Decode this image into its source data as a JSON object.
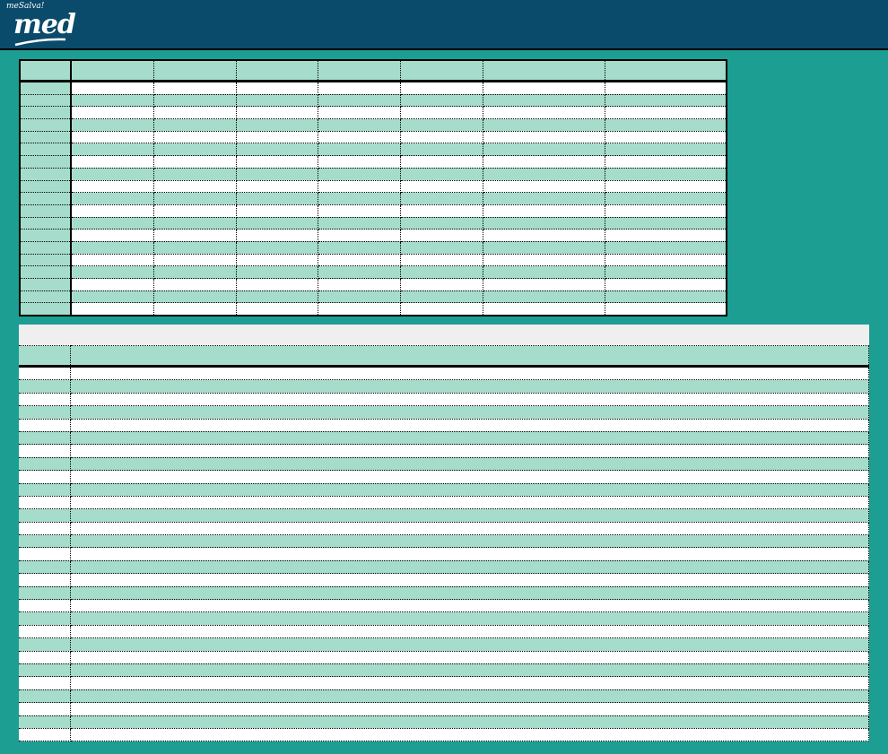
{
  "header": {
    "logo_small": "meSalva!",
    "logo_big": "med"
  },
  "colors": {
    "topbar": "#0a4a6b",
    "background": "#1d9e92",
    "row_alt": "#a6dccb"
  },
  "table1": {
    "headers": [
      "",
      "",
      "",
      "",
      "",
      "",
      "",
      ""
    ]
  },
  "table2": {
    "title": "",
    "headers": [
      "",
      ""
    ]
  }
}
